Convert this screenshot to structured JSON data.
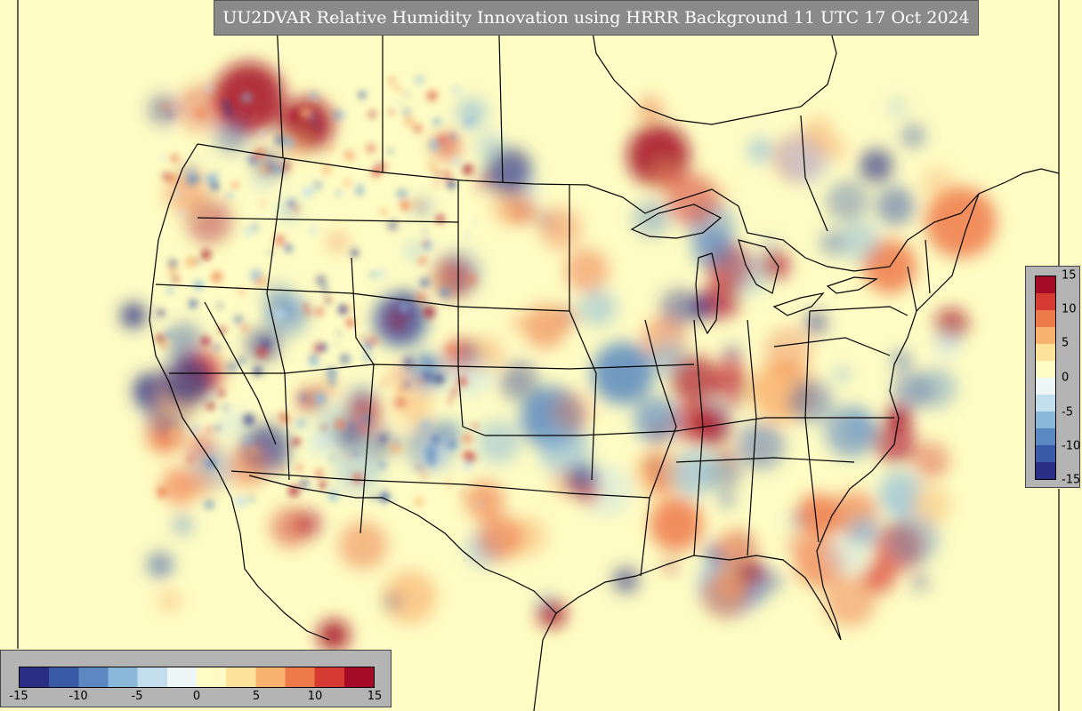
{
  "title": "UU2DVAR Relative Humidity Innovation using HRRR Background 11 UTC 17 Oct 2024",
  "colorbar": {
    "ticks": [
      "15",
      "10",
      "5",
      "0",
      "-5",
      "-10",
      "-15"
    ],
    "ticks_h": [
      "-15",
      "-10",
      "-5",
      "0",
      "5",
      "10",
      "15"
    ],
    "range": [
      -15,
      15
    ],
    "colors": [
      "#2a2f85",
      "#3a59a6",
      "#5b88c0",
      "#8ab8d9",
      "#c2deec",
      "#eef7f7",
      "#fefcc4",
      "#fde29a",
      "#f9b26e",
      "#ee7a4b",
      "#d63b33",
      "#a50a27"
    ]
  },
  "colors": {
    "background": "#fefcc4",
    "panel": "#b4b4b4",
    "title_box": "#8a8a8a"
  }
}
